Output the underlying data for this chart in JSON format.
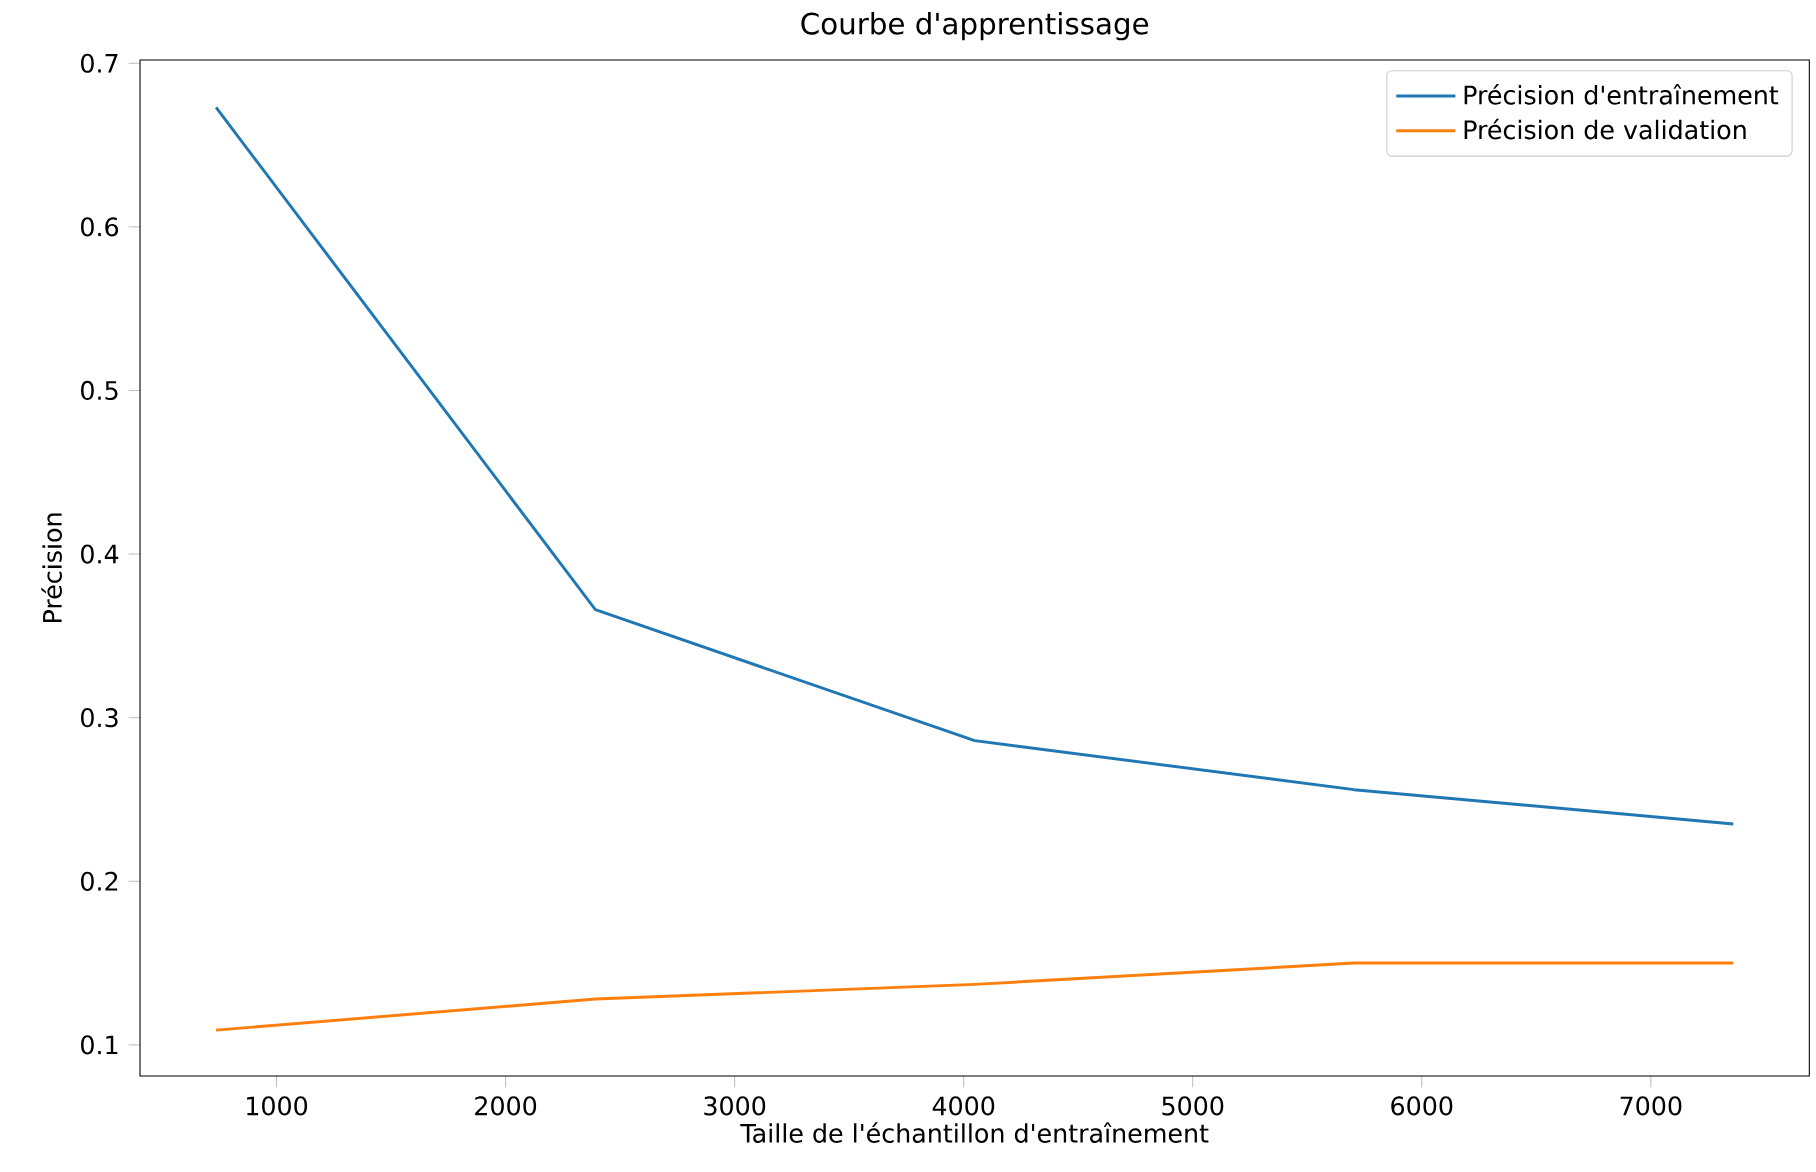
{
  "chart_data": {
    "type": "line",
    "title": "Courbe d'apprentissage",
    "xlabel": "Taille de l'échantillon d'entraînement",
    "ylabel": "Précision",
    "x": [
      736,
      2392,
      4048,
      5704,
      7360
    ],
    "series": [
      {
        "name": "Précision d'entraînement",
        "color": "#1f77b4",
        "values": [
          0.673,
          0.366,
          0.286,
          0.256,
          0.235
        ]
      },
      {
        "name": "Précision de validation",
        "color": "#ff7f0e",
        "values": [
          0.109,
          0.128,
          0.137,
          0.15,
          0.15
        ]
      }
    ],
    "xlim": [
      404,
      7692
    ],
    "ylim": [
      0.081,
      0.702
    ],
    "xticks": [
      1000,
      2000,
      3000,
      4000,
      5000,
      6000,
      7000
    ],
    "yticks": [
      0.1,
      0.2,
      0.3,
      0.4,
      0.5,
      0.6,
      0.7
    ],
    "legend": "top right",
    "grid": false,
    "marker": "none",
    "line_style": "solid"
  }
}
